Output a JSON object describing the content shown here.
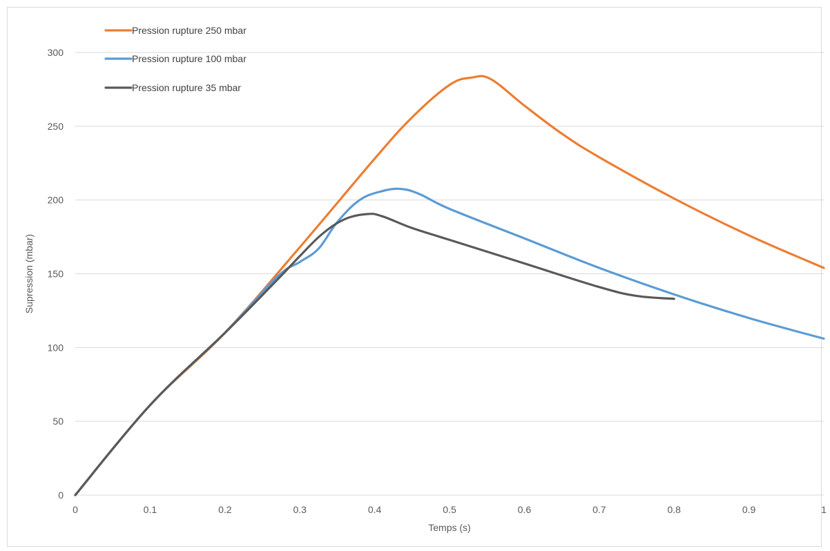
{
  "chart_data": {
    "type": "line",
    "title": "",
    "xlabel": "Temps (s)",
    "ylabel": "Supression (mbar)",
    "xlim": [
      0,
      1
    ],
    "ylim": [
      0,
      300
    ],
    "xticks": [
      0,
      0.1,
      0.2,
      0.3,
      0.4,
      0.5,
      0.6,
      0.7,
      0.8,
      0.9,
      1
    ],
    "xtick_labels": [
      "0",
      "0.1",
      "0.2",
      "0.3",
      "0.4",
      "0.5",
      "0.6",
      "0.7",
      "0.8",
      "0.9",
      "1"
    ],
    "yticks": [
      0,
      50,
      100,
      150,
      200,
      250,
      300
    ],
    "ytick_labels": [
      "0",
      "50",
      "100",
      "150",
      "200",
      "250",
      "300"
    ],
    "grid": "horizontal",
    "legend_position": "top-left",
    "series": [
      {
        "name": "Pression rupture 250 mbar",
        "color": "#ED7D31",
        "points": [
          [
            0,
            0
          ],
          [
            0.1,
            61
          ],
          [
            0.2,
            110
          ],
          [
            0.3,
            168
          ],
          [
            0.4,
            228
          ],
          [
            0.45,
            256
          ],
          [
            0.5,
            278
          ],
          [
            0.53,
            283
          ],
          [
            0.555,
            282
          ],
          [
            0.6,
            264
          ],
          [
            0.65,
            245
          ],
          [
            0.7,
            229
          ],
          [
            0.8,
            201
          ],
          [
            0.9,
            176
          ],
          [
            1,
            154
          ]
        ]
      },
      {
        "name": "Pression rupture 100 mbar",
        "color": "#5B9BD5",
        "points": [
          [
            0,
            0
          ],
          [
            0.1,
            61
          ],
          [
            0.2,
            110
          ],
          [
            0.27,
            148
          ],
          [
            0.3,
            158
          ],
          [
            0.325,
            167
          ],
          [
            0.35,
            185
          ],
          [
            0.38,
            200
          ],
          [
            0.41,
            206
          ],
          [
            0.435,
            207.5
          ],
          [
            0.46,
            204
          ],
          [
            0.5,
            194
          ],
          [
            0.6,
            174
          ],
          [
            0.7,
            154
          ],
          [
            0.8,
            136
          ],
          [
            0.9,
            120
          ],
          [
            1,
            106
          ]
        ]
      },
      {
        "name": "Pression rupture 35 mbar",
        "color": "#595959",
        "points": [
          [
            0,
            0
          ],
          [
            0.1,
            61
          ],
          [
            0.2,
            110
          ],
          [
            0.27,
            146
          ],
          [
            0.3,
            162
          ],
          [
            0.33,
            177
          ],
          [
            0.36,
            187
          ],
          [
            0.39,
            190.5
          ],
          [
            0.41,
            189
          ],
          [
            0.45,
            181
          ],
          [
            0.5,
            173
          ],
          [
            0.6,
            157
          ],
          [
            0.7,
            141
          ],
          [
            0.75,
            135
          ],
          [
            0.8,
            133
          ]
        ]
      }
    ]
  }
}
